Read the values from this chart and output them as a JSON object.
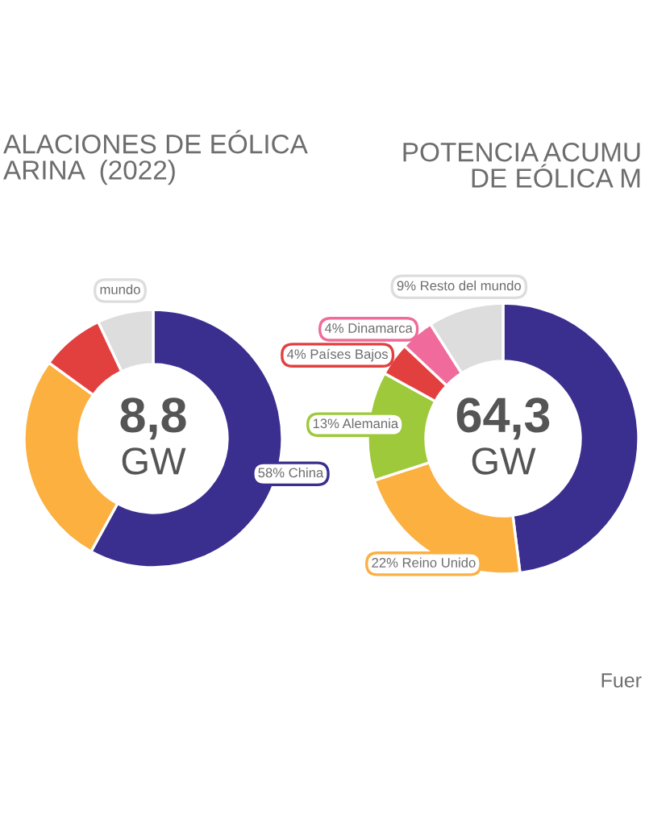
{
  "chart_data": [
    {
      "type": "donut",
      "title": "ALACIONES DE EÓLICA\nARINA  (2022)",
      "categories": [
        "China",
        null,
        null,
        "mundo"
      ],
      "values": [
        58,
        27,
        8,
        7
      ],
      "colors": [
        "#3a2e8e",
        "#fbb040",
        "#e2403f",
        "#dddddd"
      ],
      "value_labels": [
        "58%",
        null,
        null,
        null
      ],
      "annotations": [
        "8,8",
        "GW"
      ]
    },
    {
      "type": "donut",
      "title": "POTENCIA ACUMU\nDE EÓLICA M",
      "categories": [
        null,
        "Reino Unido",
        "Alemania",
        "Países Bajos",
        "Dinamarca",
        "Resto del mundo"
      ],
      "values": [
        48,
        22,
        13,
        4,
        4,
        9
      ],
      "colors": [
        "#3a2e8e",
        "#fbb040",
        "#9dc93b",
        "#e2403f",
        "#f06b9b",
        "#dddddd"
      ],
      "value_labels": [
        null,
        "22%",
        "13%",
        "4%",
        "4%",
        "9%"
      ],
      "annotations": [
        "64,3",
        "GW",
        "Fuer"
      ]
    }
  ]
}
